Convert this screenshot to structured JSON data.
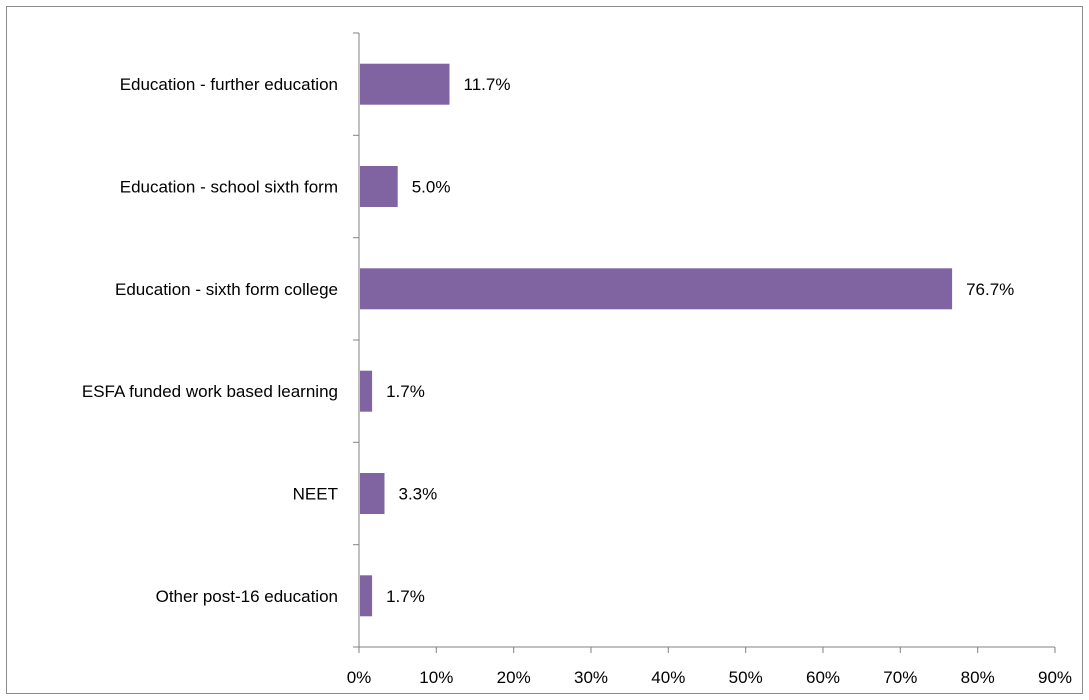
{
  "chart_data": {
    "type": "bar",
    "orientation": "horizontal",
    "title": "",
    "xlabel": "",
    "ylabel": "",
    "categories": [
      "Education - further education",
      "Education - school sixth form",
      "Education - sixth form college",
      "ESFA funded work based learning",
      "NEET",
      "Other post-16 education"
    ],
    "values": [
      11.7,
      5.0,
      76.7,
      1.7,
      3.3,
      1.7
    ],
    "data_labels": [
      "11.7%",
      "5.0%",
      "76.7%",
      "1.7%",
      "3.3%",
      "1.7%"
    ],
    "xlim": [
      0,
      90
    ],
    "xticks": [
      0,
      10,
      20,
      30,
      40,
      50,
      60,
      70,
      80,
      90
    ],
    "xtick_labels": [
      "0%",
      "10%",
      "20%",
      "30%",
      "40%",
      "50%",
      "60%",
      "70%",
      "80%",
      "90%"
    ],
    "grid": false,
    "legend": "none",
    "bar_color": "#8064a2",
    "axis_color": "#808080"
  }
}
